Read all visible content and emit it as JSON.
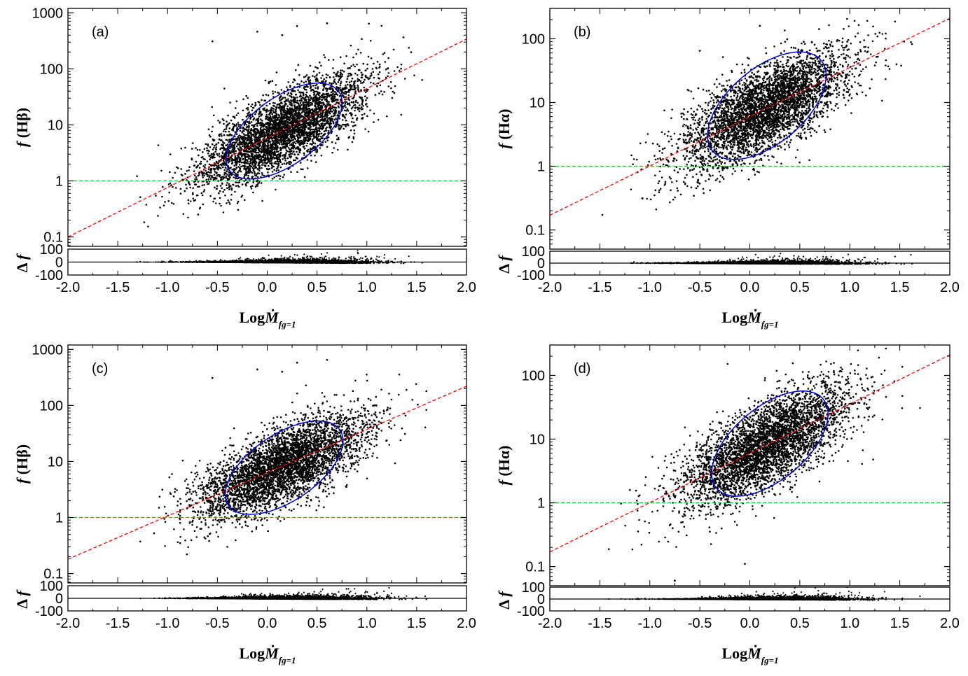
{
  "colors": {
    "points": "#000000",
    "fit_line": "#ff0000",
    "reference_line": "#00cc00",
    "ellipse": "#0000cc",
    "frame": "#000000"
  },
  "chart_data": [
    {
      "type": "scatter",
      "panel_label": "(a)",
      "ylabel": "f (Hβ)",
      "xlabel": "LogṀ_fg=1",
      "x_ticks": [
        "-2.0",
        "-1.5",
        "-1.0",
        "-0.5",
        "0.0",
        "0.5",
        "1.0",
        "1.5",
        "2.0"
      ],
      "y_ticks": [
        "0.1",
        "1",
        "10",
        "100",
        "1000"
      ],
      "xlim": [
        -2.0,
        2.0
      ],
      "ylim": [
        0.068,
        1200
      ],
      "y_scale": "log",
      "fit_line": {
        "x": [
          -2.0,
          2.0
        ],
        "y": [
          0.1,
          340
        ]
      },
      "reference_line_y": 1,
      "ellipse": {
        "center_x": 0.17,
        "center_log_y": 0.89,
        "semi_major": 1.22,
        "semi_minor": 0.6,
        "angle_deg": 35
      },
      "outliers": [
        {
          "x": -0.55,
          "y": 310
        },
        {
          "x": -0.1,
          "y": 460
        },
        {
          "x": 0.3,
          "y": 580
        },
        {
          "x": 0.6,
          "y": 650
        },
        {
          "x": 0.15,
          "y": 400
        }
      ],
      "residual": {
        "label": "Δ f",
        "y_ticks": [
          "100",
          "0",
          "-100"
        ],
        "ylim": [
          -100,
          100
        ]
      }
    },
    {
      "type": "scatter",
      "panel_label": "(b)",
      "ylabel": "f (Hα)",
      "xlabel": "LogṀ_fg=1",
      "x_ticks": [
        "-2.0",
        "-1.5",
        "-1.0",
        "-0.5",
        "0.0",
        "0.5",
        "1.0",
        "1.5",
        "2.0"
      ],
      "y_ticks": [
        "0.1",
        "1",
        "10",
        "100"
      ],
      "xlim": [
        -2.0,
        2.0
      ],
      "ylim": [
        0.05,
        300
      ],
      "y_scale": "log",
      "fit_line": {
        "x": [
          -2.0,
          2.0
        ],
        "y": [
          0.17,
          210
        ]
      },
      "reference_line_y": 1,
      "ellipse": {
        "center_x": 0.17,
        "center_log_y": 0.95,
        "semi_major": 1.22,
        "semi_minor": 0.62,
        "angle_deg": 33
      },
      "outliers": [
        {
          "x": 0.1,
          "y": 160
        },
        {
          "x": -0.5,
          "y": 65
        }
      ],
      "residual": {
        "label": "Δ f",
        "y_ticks": [
          "100",
          "0",
          "-100"
        ],
        "ylim": [
          -100,
          100
        ]
      }
    },
    {
      "type": "scatter",
      "panel_label": "(c)",
      "ylabel": "f (Hβ)",
      "xlabel": "LogṀ_fg=1",
      "x_ticks": [
        "-2.0",
        "-1.5",
        "-1.0",
        "-0.5",
        "0.0",
        "0.5",
        "1.0",
        "1.5",
        "2.0"
      ],
      "y_ticks": [
        "0.1",
        "1",
        "10",
        "100",
        "1000"
      ],
      "xlim": [
        -2.0,
        2.0
      ],
      "ylim": [
        0.068,
        1200
      ],
      "y_scale": "log",
      "fit_line": {
        "x": [
          -2.0,
          2.0
        ],
        "y": [
          0.18,
          220
        ]
      },
      "reference_line_y": 1,
      "ellipse": {
        "center_x": 0.17,
        "center_log_y": 0.89,
        "semi_major": 1.22,
        "semi_minor": 0.6,
        "angle_deg": 33
      },
      "outliers": [
        {
          "x": -0.55,
          "y": 310
        },
        {
          "x": -0.1,
          "y": 440
        },
        {
          "x": 0.3,
          "y": 580
        },
        {
          "x": 0.6,
          "y": 650
        },
        {
          "x": 0.15,
          "y": 400
        }
      ],
      "residual": {
        "label": "Δ f",
        "y_ticks": [
          "100",
          "0",
          "-100"
        ],
        "ylim": [
          -100,
          100
        ]
      }
    },
    {
      "type": "scatter",
      "panel_label": "(d)",
      "ylabel": "f (Hα)",
      "xlabel": "LogṀ_fg=1",
      "x_ticks": [
        "-2.0",
        "-1.5",
        "-1.0",
        "-0.5",
        "0.0",
        "0.5",
        "1.0",
        "1.5",
        "2.0"
      ],
      "y_ticks": [
        "0.1",
        "1",
        "10",
        "100"
      ],
      "xlim": [
        -2.0,
        2.0
      ],
      "ylim": [
        0.05,
        300
      ],
      "y_scale": "log",
      "fit_line": {
        "x": [
          -2.0,
          2.0
        ],
        "y": [
          0.17,
          210
        ]
      },
      "reference_line_y": 1,
      "ellipse": {
        "center_x": 0.2,
        "center_log_y": 0.93,
        "semi_major": 1.2,
        "semi_minor": 0.6,
        "angle_deg": 33
      },
      "outliers": [
        {
          "x": -0.75,
          "y": 0.06
        },
        {
          "x": -0.05,
          "y": 0.11
        }
      ],
      "residual": {
        "label": "Δ f",
        "y_ticks": [
          "100",
          "0",
          "-100"
        ],
        "ylim": [
          -100,
          100
        ]
      }
    }
  ]
}
